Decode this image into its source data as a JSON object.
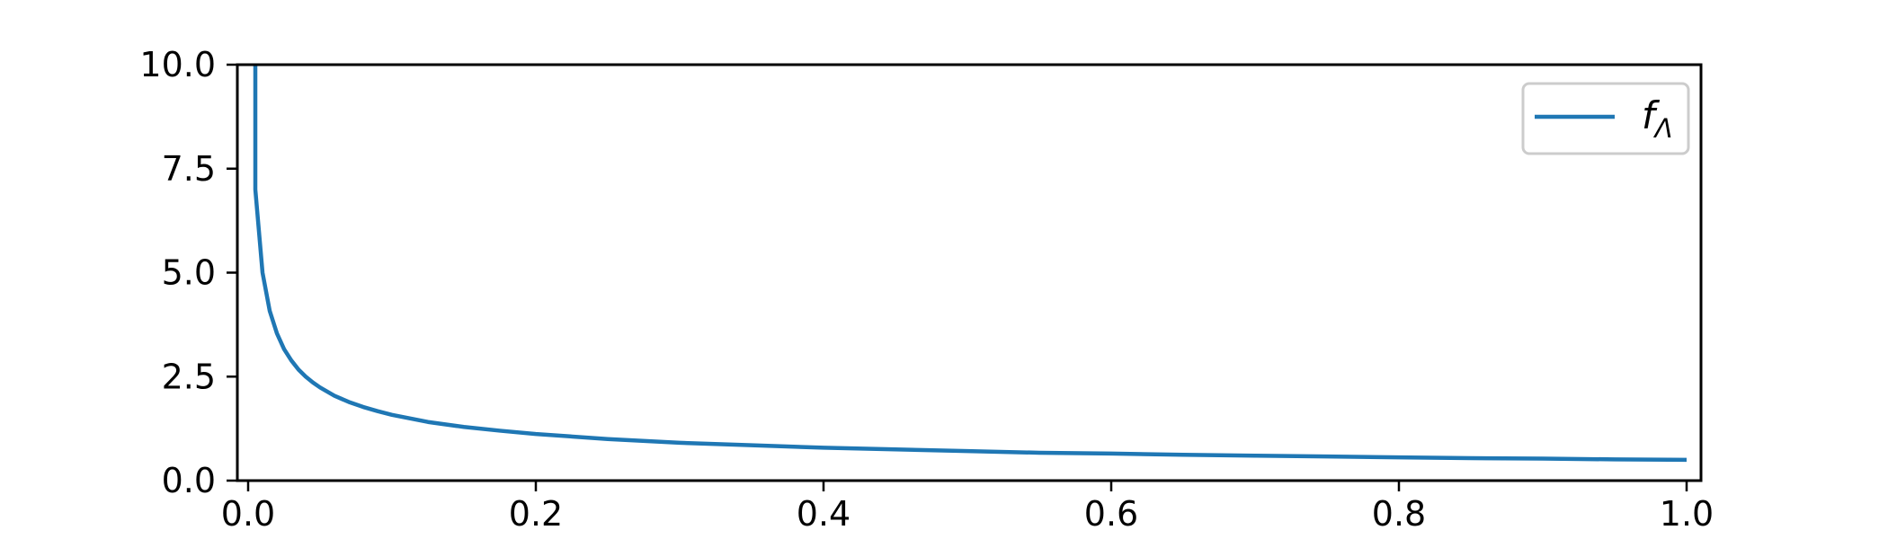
{
  "chart_data": {
    "type": "line",
    "title": "",
    "xlabel": "",
    "ylabel": "",
    "xlim": [
      -0.0075,
      1.01
    ],
    "ylim": [
      0.0,
      10.0
    ],
    "x_ticks": [
      0.0,
      0.2,
      0.4,
      0.6,
      0.8,
      1.0
    ],
    "x_tick_labels": [
      "0.0",
      "0.2",
      "0.4",
      "0.6",
      "0.8",
      "1.0"
    ],
    "y_ticks": [
      0.0,
      2.5,
      5.0,
      7.5,
      10.0
    ],
    "y_tick_labels": [
      "0.0",
      "2.5",
      "5.0",
      "7.5",
      "10.0"
    ],
    "grid": false,
    "legend_placement": "top-right",
    "legend": {
      "symbol": "f",
      "subscript": "Λ"
    },
    "series": [
      {
        "name": "fΛ",
        "color": "#1f77b4",
        "x": [
          0.005,
          0.01,
          0.015,
          0.02,
          0.025,
          0.03,
          0.035,
          0.04,
          0.045,
          0.05,
          0.06,
          0.07,
          0.08,
          0.09,
          0.1,
          0.125,
          0.15,
          0.175,
          0.2,
          0.25,
          0.3,
          0.35,
          0.4,
          0.45,
          0.5,
          0.55,
          0.6,
          0.65,
          0.7,
          0.75,
          0.8,
          0.85,
          0.9,
          0.95,
          1.0
        ],
        "y": [
          7.0,
          5.0,
          4.08,
          3.54,
          3.16,
          2.89,
          2.67,
          2.5,
          2.36,
          2.24,
          2.04,
          1.89,
          1.77,
          1.67,
          1.58,
          1.41,
          1.29,
          1.2,
          1.12,
          1.0,
          0.91,
          0.85,
          0.79,
          0.75,
          0.71,
          0.67,
          0.65,
          0.62,
          0.6,
          0.58,
          0.56,
          0.54,
          0.53,
          0.51,
          0.5
        ]
      }
    ]
  }
}
